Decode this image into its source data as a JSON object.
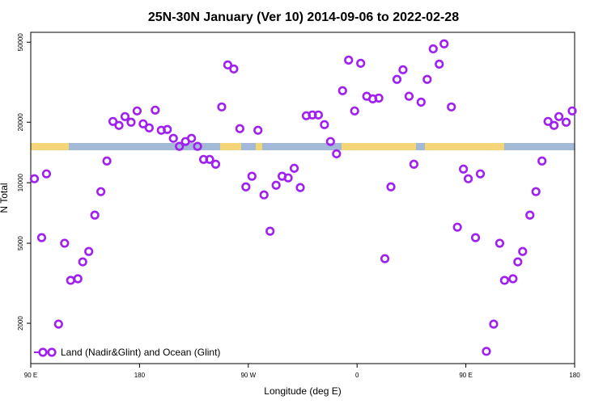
{
  "chart_data": {
    "type": "scatter",
    "title": "25N-30N January (Ver 10)   2014-09-06 to 2022-02-28",
    "x_label": "Longitude (deg E)",
    "y_label": "N Total",
    "xlim": [
      90,
      540
    ],
    "xticks": [
      {
        "value": 90,
        "label": "90 E"
      },
      {
        "value": 180,
        "label": "180"
      },
      {
        "value": 270,
        "label": "90 W"
      },
      {
        "value": 360,
        "label": "0"
      },
      {
        "value": 450,
        "label": "90 E"
      },
      {
        "value": 540,
        "label": "180"
      }
    ],
    "ylim": [
      1260,
      56000
    ],
    "yticks": [
      2000,
      5000,
      10000,
      20000,
      50000
    ],
    "log_y": true,
    "legend": "bottom-left",
    "series": [
      {
        "name": "Land (Nadir&Glint) and Ocean (Glint)",
        "color": "#a020f0",
        "x": [
          93,
          99,
          103,
          113,
          118,
          123,
          129,
          133,
          138,
          143,
          148,
          153,
          158,
          163,
          168,
          173,
          178,
          183,
          188,
          193,
          198,
          203,
          208,
          213,
          218,
          223,
          228,
          233,
          238,
          243,
          248,
          253,
          258,
          263,
          268,
          273,
          278,
          283,
          288,
          293,
          298,
          303,
          308,
          313,
          318,
          323,
          328,
          333,
          338,
          343,
          348,
          353,
          358,
          363,
          368,
          373,
          378,
          383,
          388,
          393,
          398,
          403,
          407,
          413,
          418,
          423,
          428,
          432,
          438,
          443,
          448,
          452,
          458,
          462,
          467,
          473,
          478,
          482,
          489,
          493,
          497,
          503,
          508,
          513,
          518,
          523,
          527,
          533,
          538
        ],
        "values": [
          10470,
          5330,
          11070,
          1980,
          5000,
          3270,
          3330,
          4040,
          4550,
          6900,
          9030,
          12830,
          20180,
          19280,
          21330,
          20000,
          22760,
          19630,
          18750,
          22970,
          18240,
          18400,
          16630,
          15170,
          16030,
          16630,
          15170,
          13060,
          13060,
          12360,
          23830,
          38550,
          36810,
          18580,
          9540,
          10770,
          18240,
          8700,
          5740,
          9720,
          10770,
          10570,
          11800,
          9460,
          21530,
          21730,
          21730,
          19450,
          16030,
          13930,
          28700,
          40740,
          22760,
          39270,
          26920,
          26120,
          26370,
          4190,
          9540,
          32660,
          36480,
          26920,
          12360,
          25180,
          32660,
          46340,
          38900,
          49090,
          23830,
          6010,
          11690,
          10470,
          5330,
          11070,
          1450,
          1980,
          5000,
          3270,
          3330,
          4040,
          4550,
          6900,
          9030,
          12830,
          20180,
          19280,
          21330,
          20000,
          22760
        ]
      }
    ]
  }
}
